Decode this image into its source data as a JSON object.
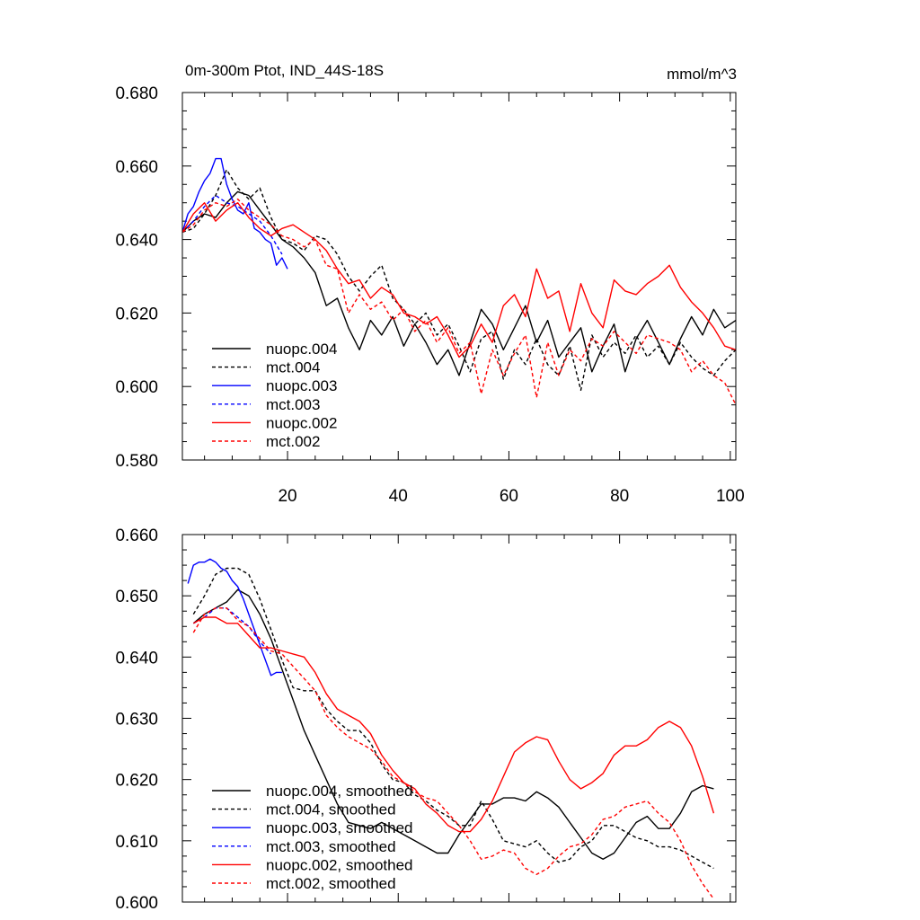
{
  "chart_data": [
    {
      "type": "line",
      "title": "0m-300m Ptot, IND_44S-18S",
      "units": "mmol/m^3",
      "xlim": [
        1,
        101
      ],
      "ylim": [
        0.58,
        0.68
      ],
      "x_ticks": [
        20,
        40,
        60,
        80,
        100
      ],
      "y_ticks": [
        "0.580",
        "0.600",
        "0.620",
        "0.640",
        "0.660",
        "0.680"
      ],
      "legend_position": "lower-left",
      "series": [
        {
          "name": "nuopc.004",
          "color": "#000000",
          "dash": "solid",
          "x": [
            1,
            3,
            5,
            7,
            9,
            11,
            13,
            15,
            17,
            19,
            21,
            23,
            25,
            27,
            29,
            31,
            33,
            35,
            37,
            39,
            41,
            43,
            45,
            47,
            49,
            51,
            53,
            55,
            57,
            59,
            61,
            63,
            65,
            67,
            69,
            71,
            73,
            75,
            77,
            79,
            81,
            83,
            85,
            87,
            89,
            91,
            93,
            95,
            97,
            99,
            101
          ],
          "y": [
            0.642,
            0.645,
            0.647,
            0.646,
            0.65,
            0.653,
            0.652,
            0.648,
            0.644,
            0.64,
            0.638,
            0.635,
            0.631,
            0.622,
            0.624,
            0.616,
            0.61,
            0.618,
            0.614,
            0.619,
            0.611,
            0.617,
            0.612,
            0.606,
            0.61,
            0.603,
            0.612,
            0.621,
            0.617,
            0.61,
            0.616,
            0.622,
            0.612,
            0.618,
            0.608,
            0.612,
            0.616,
            0.604,
            0.611,
            0.617,
            0.604,
            0.613,
            0.618,
            0.612,
            0.606,
            0.613,
            0.619,
            0.614,
            0.621,
            0.616,
            0.618
          ]
        },
        {
          "name": "mct.004",
          "color": "#000000",
          "dash": "dashed",
          "x": [
            1,
            3,
            5,
            7,
            9,
            11,
            13,
            15,
            17,
            19,
            21,
            23,
            25,
            27,
            29,
            31,
            33,
            35,
            37,
            39,
            41,
            43,
            45,
            47,
            49,
            51,
            53,
            55,
            57,
            59,
            61,
            63,
            65,
            67,
            69,
            71,
            73,
            75,
            77,
            79,
            81,
            83,
            85,
            87,
            89,
            91,
            93,
            95,
            97,
            99,
            101
          ],
          "y": [
            0.642,
            0.643,
            0.647,
            0.652,
            0.659,
            0.654,
            0.651,
            0.654,
            0.646,
            0.64,
            0.639,
            0.637,
            0.641,
            0.64,
            0.636,
            0.63,
            0.626,
            0.63,
            0.633,
            0.624,
            0.621,
            0.617,
            0.62,
            0.614,
            0.617,
            0.611,
            0.604,
            0.613,
            0.615,
            0.602,
            0.61,
            0.606,
            0.613,
            0.606,
            0.603,
            0.611,
            0.599,
            0.614,
            0.608,
            0.612,
            0.609,
            0.614,
            0.608,
            0.611,
            0.606,
            0.612,
            0.608,
            0.605,
            0.603,
            0.607,
            0.61
          ]
        },
        {
          "name": "nuopc.003",
          "color": "#0000ff",
          "dash": "solid",
          "x": [
            1,
            2,
            3,
            4,
            5,
            6,
            7,
            8,
            9,
            10,
            11,
            12,
            13,
            14,
            15,
            16,
            17,
            18,
            19,
            20
          ],
          "y": [
            0.642,
            0.647,
            0.649,
            0.653,
            0.656,
            0.658,
            0.662,
            0.662,
            0.655,
            0.651,
            0.648,
            0.647,
            0.65,
            0.643,
            0.642,
            0.64,
            0.639,
            0.633,
            0.635,
            0.632
          ]
        },
        {
          "name": "mct.003",
          "color": "#0000ff",
          "dash": "dashed",
          "x": [
            1,
            3,
            5,
            7,
            9,
            11,
            13,
            15,
            17,
            19
          ],
          "y": [
            0.642,
            0.645,
            0.649,
            0.652,
            0.65,
            0.649,
            0.647,
            0.645,
            0.641,
            0.636
          ]
        },
        {
          "name": "nuopc.002",
          "color": "#ff0000",
          "dash": "solid",
          "x": [
            1,
            3,
            5,
            7,
            9,
            11,
            13,
            15,
            17,
            19,
            21,
            23,
            25,
            27,
            29,
            31,
            33,
            35,
            37,
            39,
            41,
            43,
            45,
            47,
            49,
            51,
            53,
            55,
            57,
            59,
            61,
            63,
            65,
            67,
            69,
            71,
            73,
            75,
            77,
            79,
            81,
            83,
            85,
            87,
            89,
            91,
            93,
            95,
            97,
            99,
            101
          ],
          "y": [
            0.642,
            0.647,
            0.65,
            0.645,
            0.648,
            0.65,
            0.646,
            0.643,
            0.641,
            0.643,
            0.644,
            0.642,
            0.64,
            0.637,
            0.632,
            0.628,
            0.629,
            0.624,
            0.627,
            0.625,
            0.62,
            0.619,
            0.617,
            0.619,
            0.614,
            0.608,
            0.611,
            0.617,
            0.612,
            0.622,
            0.625,
            0.619,
            0.632,
            0.624,
            0.626,
            0.615,
            0.628,
            0.62,
            0.616,
            0.629,
            0.626,
            0.625,
            0.628,
            0.63,
            0.633,
            0.627,
            0.623,
            0.62,
            0.616,
            0.611,
            0.61
          ]
        },
        {
          "name": "mct.002",
          "color": "#ff0000",
          "dash": "dashed",
          "x": [
            1,
            3,
            5,
            7,
            9,
            11,
            13,
            15,
            17,
            19,
            21,
            23,
            25,
            27,
            29,
            31,
            33,
            35,
            37,
            39,
            41,
            43,
            45,
            47,
            49,
            51,
            53,
            55,
            57,
            59,
            61,
            63,
            65,
            67,
            69,
            71,
            73,
            75,
            77,
            79,
            81,
            83,
            85,
            87,
            89,
            91,
            93,
            95,
            97,
            99,
            101
          ],
          "y": [
            0.642,
            0.644,
            0.648,
            0.65,
            0.649,
            0.651,
            0.648,
            0.646,
            0.644,
            0.641,
            0.64,
            0.638,
            0.64,
            0.633,
            0.632,
            0.62,
            0.625,
            0.621,
            0.623,
            0.618,
            0.621,
            0.615,
            0.618,
            0.612,
            0.616,
            0.609,
            0.612,
            0.598,
            0.61,
            0.603,
            0.609,
            0.614,
            0.597,
            0.612,
            0.603,
            0.61,
            0.607,
            0.613,
            0.611,
            0.615,
            0.612,
            0.609,
            0.614,
            0.613,
            0.612,
            0.61,
            0.604,
            0.607,
            0.603,
            0.601,
            0.595
          ]
        }
      ]
    },
    {
      "type": "line",
      "title": "",
      "xlim": [
        1,
        101
      ],
      "ylim": [
        0.6,
        0.66
      ],
      "y_ticks": [
        "0.600",
        "0.610",
        "0.620",
        "0.630",
        "0.640",
        "0.650",
        "0.660"
      ],
      "legend_position": "lower-left",
      "series": [
        {
          "name": "nuopc.004, smoothed",
          "color": "#000000",
          "dash": "solid",
          "x": [
            3,
            5,
            7,
            9,
            11,
            13,
            15,
            17,
            19,
            21,
            23,
            25,
            27,
            29,
            31,
            33,
            35,
            37,
            39,
            41,
            43,
            45,
            47,
            49,
            51,
            53,
            55,
            57,
            59,
            61,
            63,
            65,
            67,
            69,
            71,
            73,
            75,
            77,
            79,
            81,
            83,
            85,
            87,
            89,
            91,
            93,
            95,
            97
          ],
          "y": [
            0.6455,
            0.647,
            0.648,
            0.649,
            0.651,
            0.65,
            0.647,
            0.643,
            0.638,
            0.633,
            0.628,
            0.624,
            0.62,
            0.616,
            0.613,
            0.6125,
            0.612,
            0.613,
            0.612,
            0.611,
            0.61,
            0.609,
            0.608,
            0.608,
            0.611,
            0.6135,
            0.616,
            0.616,
            0.617,
            0.617,
            0.6165,
            0.618,
            0.617,
            0.6155,
            0.613,
            0.6105,
            0.608,
            0.607,
            0.608,
            0.6105,
            0.613,
            0.614,
            0.612,
            0.612,
            0.6145,
            0.618,
            0.619,
            0.6185
          ]
        },
        {
          "name": "mct.004, smoothed",
          "color": "#000000",
          "dash": "dashed",
          "x": [
            3,
            5,
            7,
            9,
            11,
            13,
            15,
            17,
            19,
            21,
            23,
            25,
            27,
            29,
            31,
            33,
            35,
            37,
            39,
            41,
            43,
            45,
            47,
            49,
            51,
            53,
            55,
            57,
            59,
            61,
            63,
            65,
            67,
            69,
            71,
            73,
            75,
            77,
            79,
            81,
            83,
            85,
            87,
            89,
            91,
            93,
            95,
            97
          ],
          "y": [
            0.647,
            0.65,
            0.6535,
            0.6545,
            0.6545,
            0.6535,
            0.6495,
            0.6445,
            0.6395,
            0.635,
            0.6345,
            0.6345,
            0.6315,
            0.6295,
            0.628,
            0.628,
            0.626,
            0.6225,
            0.62,
            0.6195,
            0.6175,
            0.6165,
            0.615,
            0.614,
            0.6125,
            0.6125,
            0.6165,
            0.6135,
            0.61,
            0.6095,
            0.609,
            0.61,
            0.608,
            0.6065,
            0.607,
            0.609,
            0.61,
            0.6125,
            0.6125,
            0.6115,
            0.6105,
            0.61,
            0.609,
            0.609,
            0.6085,
            0.6075,
            0.6065,
            0.6055
          ]
        },
        {
          "name": "nuopc.003, smoothed",
          "color": "#0000ff",
          "dash": "solid",
          "x": [
            2,
            3,
            4,
            5,
            6,
            7,
            8,
            9,
            10,
            11,
            12,
            13,
            14,
            15,
            16,
            17,
            18,
            19
          ],
          "y": [
            0.652,
            0.655,
            0.6555,
            0.6555,
            0.656,
            0.6555,
            0.6545,
            0.654,
            0.6525,
            0.6515,
            0.6495,
            0.647,
            0.6445,
            0.642,
            0.6395,
            0.637,
            0.6375,
            0.6375
          ]
        },
        {
          "name": "mct.003, smoothed",
          "color": "#0000ff",
          "dash": "dashed",
          "x": [
            3,
            5,
            7,
            9,
            11,
            13,
            15,
            17
          ],
          "y": [
            0.6455,
            0.6465,
            0.648,
            0.648,
            0.6465,
            0.645,
            0.6425,
            0.6405
          ]
        },
        {
          "name": "nuopc.002, smoothed",
          "color": "#ff0000",
          "dash": "solid",
          "x": [
            3,
            5,
            7,
            9,
            11,
            13,
            15,
            17,
            19,
            21,
            23,
            25,
            27,
            29,
            31,
            33,
            35,
            37,
            39,
            41,
            43,
            45,
            47,
            49,
            51,
            53,
            55,
            57,
            59,
            61,
            63,
            65,
            67,
            69,
            71,
            73,
            75,
            77,
            79,
            81,
            83,
            85,
            87,
            89,
            91,
            93,
            95,
            97
          ],
          "y": [
            0.6455,
            0.6465,
            0.6465,
            0.6455,
            0.6455,
            0.6435,
            0.6415,
            0.6415,
            0.641,
            0.6405,
            0.64,
            0.6375,
            0.634,
            0.6315,
            0.6305,
            0.6295,
            0.6275,
            0.624,
            0.6215,
            0.6195,
            0.6185,
            0.616,
            0.6145,
            0.6125,
            0.6115,
            0.6115,
            0.6135,
            0.6165,
            0.6205,
            0.6245,
            0.626,
            0.627,
            0.6265,
            0.623,
            0.62,
            0.6185,
            0.6195,
            0.621,
            0.624,
            0.6255,
            0.6255,
            0.6265,
            0.6285,
            0.6295,
            0.6285,
            0.6255,
            0.6205,
            0.6145
          ]
        },
        {
          "name": "mct.002, smoothed",
          "color": "#ff0000",
          "dash": "dashed",
          "x": [
            3,
            5,
            7,
            9,
            11,
            13,
            15,
            17,
            19,
            21,
            23,
            25,
            27,
            29,
            31,
            33,
            35,
            37,
            39,
            41,
            43,
            45,
            47,
            49,
            51,
            53,
            55,
            57,
            59,
            61,
            63,
            65,
            67,
            69,
            71,
            73,
            75,
            77,
            79,
            81,
            83,
            85,
            87,
            89,
            91,
            93,
            95,
            97
          ],
          "y": [
            0.644,
            0.647,
            0.648,
            0.648,
            0.646,
            0.645,
            0.643,
            0.641,
            0.6405,
            0.6385,
            0.6365,
            0.6345,
            0.6305,
            0.6285,
            0.627,
            0.626,
            0.625,
            0.623,
            0.6205,
            0.6195,
            0.618,
            0.617,
            0.6165,
            0.6145,
            0.6125,
            0.61,
            0.607,
            0.6075,
            0.6085,
            0.608,
            0.6055,
            0.6045,
            0.6055,
            0.6075,
            0.609,
            0.6095,
            0.611,
            0.6135,
            0.614,
            0.6155,
            0.616,
            0.6165,
            0.6145,
            0.613,
            0.61,
            0.606,
            0.603,
            0.6005
          ]
        }
      ]
    }
  ]
}
